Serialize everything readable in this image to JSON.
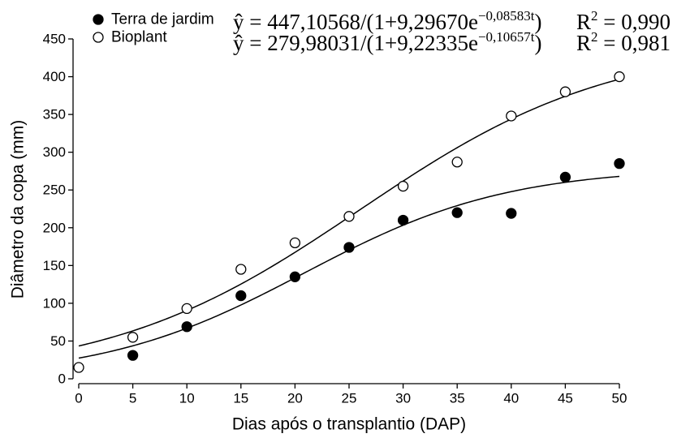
{
  "chart_data": {
    "type": "scatter",
    "xlabel": "Dias após o transplantio (DAP)",
    "ylabel": "Diâmetro da copa (mm)",
    "xlim": [
      0,
      50
    ],
    "ylim": [
      0,
      450
    ],
    "xticks": [
      0,
      5,
      10,
      15,
      20,
      25,
      30,
      35,
      40,
      45,
      50
    ],
    "yticks": [
      0,
      50,
      100,
      150,
      200,
      250,
      300,
      350,
      400,
      450
    ],
    "grid": false,
    "legend": "top-left",
    "series": [
      {
        "name": "Terra de jardim",
        "color": "#000000",
        "fill": "#000000",
        "x": [
          5,
          10,
          15,
          20,
          25,
          30,
          35,
          40,
          45,
          50
        ],
        "y": [
          31,
          69,
          110,
          135,
          174,
          210,
          220,
          219,
          267,
          285
        ]
      },
      {
        "name": "Bioplant",
        "color": "#000000",
        "fill": "#ffffff",
        "x": [
          0,
          5,
          10,
          15,
          20,
          25,
          30,
          35,
          40,
          45,
          50
        ],
        "y": [
          15,
          55,
          93,
          145,
          180,
          215,
          255,
          287,
          348,
          380,
          400
        ]
      }
    ],
    "fits": [
      {
        "equation": {
          "main": "ŷ = 447,10568/(1+9,29670e",
          "exponent": "−0,08583t",
          "close": ")"
        },
        "r2": {
          "label": "R",
          "exponent": "2",
          "value": " = 0,990"
        },
        "a": 447.10568,
        "b": 9.2967,
        "k": 0.08583
      },
      {
        "equation": {
          "main": "ŷ = 279,98031/(1+9,22335e",
          "exponent": "−0,10657t",
          "close": ")"
        },
        "r2": {
          "label": "R",
          "exponent": "2",
          "value": " = 0,981"
        },
        "a": 279.98031,
        "b": 9.22335,
        "k": 0.10657
      }
    ]
  }
}
